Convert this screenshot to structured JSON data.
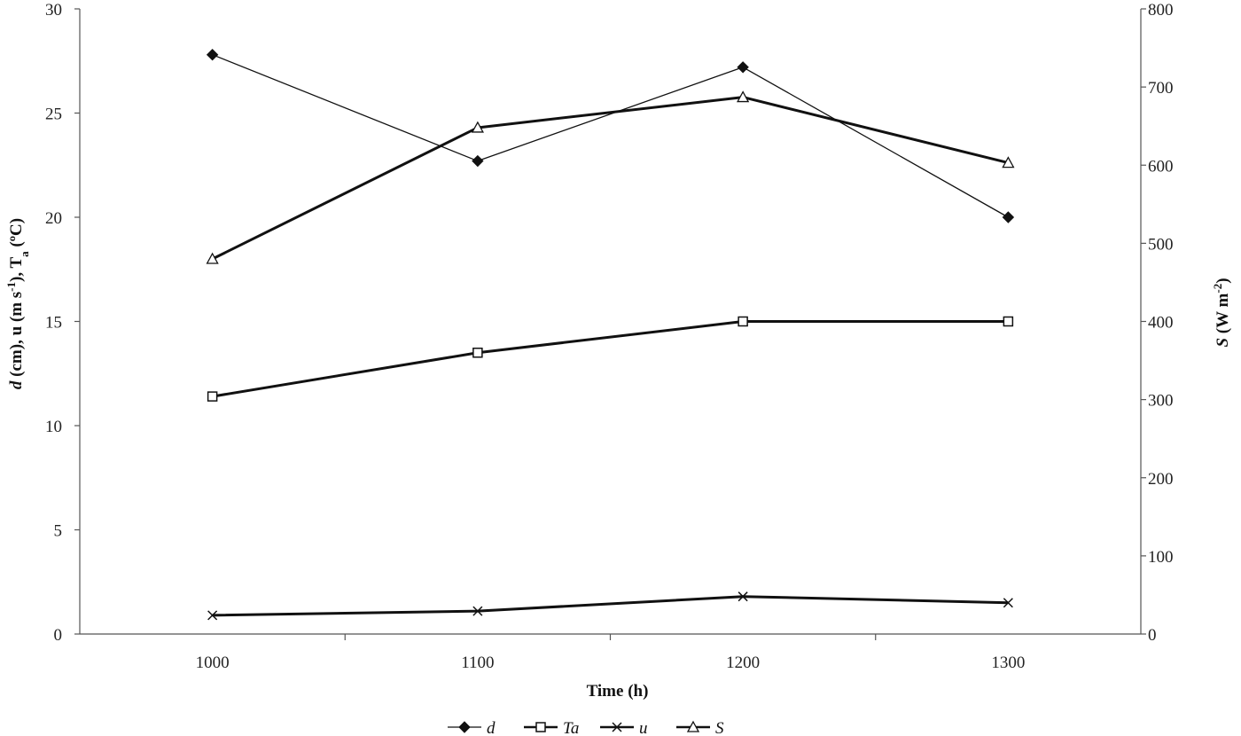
{
  "chart_data": {
    "type": "line",
    "x": [
      1000,
      1100,
      1200,
      1300
    ],
    "xlim": [
      950,
      1350
    ],
    "x_ticks": [
      1000,
      1100,
      1200,
      1300
    ],
    "x_tick_labels": [
      "1000",
      "1100",
      "1200",
      "1300"
    ],
    "x_minor_ticks": [
      1050,
      1150,
      1250
    ],
    "xlabel": "Time (h)",
    "ylim_left": [
      0,
      30
    ],
    "y_ticks_left": [
      0,
      5,
      10,
      15,
      20,
      25,
      30
    ],
    "y_tick_labels_left": [
      "0",
      "5",
      "10",
      "15",
      "20",
      "25",
      "30"
    ],
    "ylabel_left": {
      "d": "d",
      "before_ta": " (cm), u (m s",
      "sup1": "-1",
      "mid": "), T",
      "sub": "a",
      "after": " (ºC)"
    },
    "ylim_right": [
      0,
      800
    ],
    "y_ticks_right": [
      0,
      100,
      200,
      300,
      400,
      500,
      600,
      700,
      800
    ],
    "y_tick_labels_right": [
      "0",
      "100",
      "200",
      "300",
      "400",
      "500",
      "600",
      "700",
      "800"
    ],
    "ylabel_right": {
      "s": "S",
      "before": " (W m",
      "sup": "-2",
      "after": ")"
    },
    "grid": false,
    "legend_position": "bottom",
    "series": [
      {
        "name": "d",
        "axis": "left",
        "marker": "diamond",
        "stroke": 1.3,
        "values": [
          27.8,
          22.7,
          27.2,
          20.0
        ]
      },
      {
        "name": "Ta",
        "axis": "left",
        "marker": "square",
        "stroke": 3.0,
        "values": [
          11.4,
          13.5,
          15.0,
          15.0
        ]
      },
      {
        "name": "u",
        "axis": "left",
        "marker": "x",
        "stroke": 3.0,
        "values": [
          0.9,
          1.1,
          1.8,
          1.5
        ]
      },
      {
        "name": "S",
        "axis": "right",
        "marker": "triangle",
        "stroke": 3.0,
        "values": [
          480,
          648,
          687,
          603
        ]
      }
    ],
    "colors": {
      "line": "#111111",
      "axis": "#555555"
    }
  }
}
